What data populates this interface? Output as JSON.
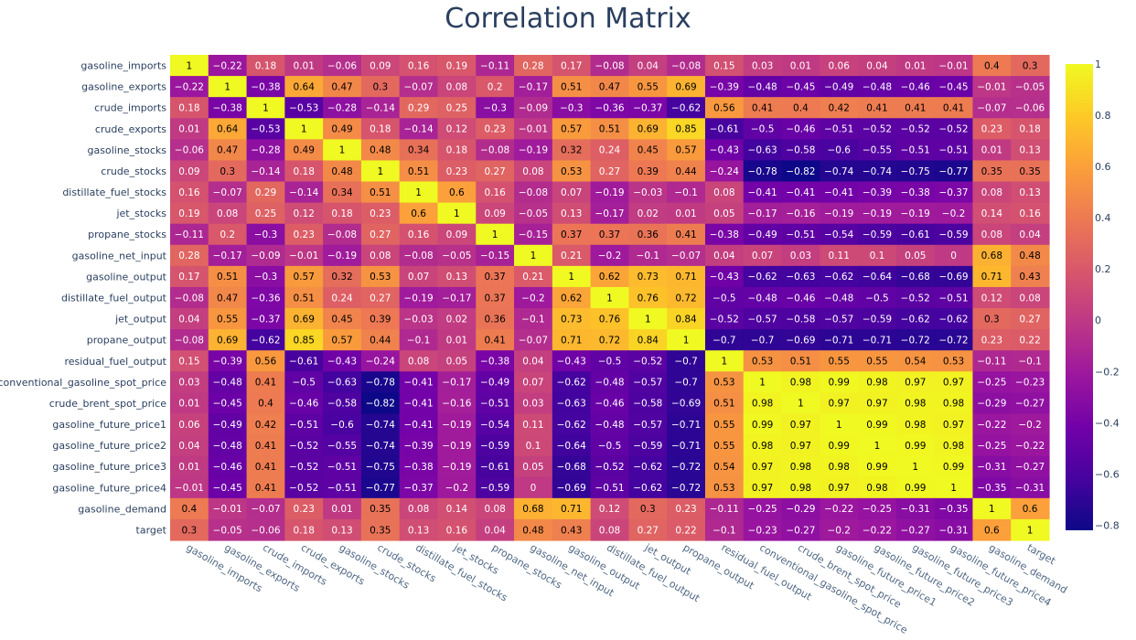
{
  "chart_data": {
    "type": "heatmap",
    "title": "Correlation Matrix",
    "xlabel": "",
    "ylabel": "",
    "categories": [
      "gasoline_imports",
      "gasoline_exports",
      "crude_imports",
      "crude_exports",
      "gasoline_stocks",
      "crude_stocks",
      "distillate_fuel_stocks",
      "jet_stocks",
      "propane_stocks",
      "gasoline_net_input",
      "gasoline_output",
      "distillate_fuel_output",
      "jet_output",
      "propane_output",
      "residual_fuel_output",
      "conventional_gasoline_spot_price",
      "crude_brent_spot_price",
      "gasoline_future_price1",
      "gasoline_future_price2",
      "gasoline_future_price3",
      "gasoline_future_price4",
      "gasoline_demand",
      "target"
    ],
    "matrix": [
      [
        1,
        -0.22,
        0.18,
        0.01,
        -0.06,
        0.09,
        0.16,
        0.19,
        -0.11,
        0.28,
        0.17,
        -0.08,
        0.04,
        -0.08,
        0.15,
        0.03,
        0.01,
        0.06,
        0.04,
        0.01,
        -0.01,
        0.4,
        0.3
      ],
      [
        -0.22,
        1,
        -0.38,
        0.64,
        0.47,
        0.3,
        -0.07,
        0.08,
        0.2,
        -0.17,
        0.51,
        0.47,
        0.55,
        0.69,
        -0.39,
        -0.48,
        -0.45,
        -0.49,
        -0.48,
        -0.46,
        -0.45,
        -0.01,
        -0.05
      ],
      [
        0.18,
        -0.38,
        1,
        -0.53,
        -0.28,
        -0.14,
        0.29,
        0.25,
        -0.3,
        -0.09,
        -0.3,
        -0.36,
        -0.37,
        -0.62,
        0.56,
        0.41,
        0.4,
        0.42,
        0.41,
        0.41,
        0.41,
        -0.07,
        -0.06
      ],
      [
        0.01,
        0.64,
        -0.53,
        1,
        0.49,
        0.18,
        -0.14,
        0.12,
        0.23,
        -0.01,
        0.57,
        0.51,
        0.69,
        0.85,
        -0.61,
        -0.5,
        -0.46,
        -0.51,
        -0.52,
        -0.52,
        -0.52,
        0.23,
        0.18
      ],
      [
        -0.06,
        0.47,
        -0.28,
        0.49,
        1,
        0.48,
        0.34,
        0.18,
        -0.08,
        -0.19,
        0.32,
        0.24,
        0.45,
        0.57,
        -0.43,
        -0.63,
        -0.58,
        -0.6,
        -0.55,
        -0.51,
        -0.51,
        0.01,
        0.13
      ],
      [
        0.09,
        0.3,
        -0.14,
        0.18,
        0.48,
        1,
        0.51,
        0.23,
        0.27,
        0.08,
        0.53,
        0.27,
        0.39,
        0.44,
        -0.24,
        -0.78,
        -0.82,
        -0.74,
        -0.74,
        -0.75,
        -0.77,
        0.35,
        0.35
      ],
      [
        0.16,
        -0.07,
        0.29,
        -0.14,
        0.34,
        0.51,
        1,
        0.6,
        0.16,
        -0.08,
        0.07,
        -0.19,
        -0.03,
        -0.1,
        0.08,
        -0.41,
        -0.41,
        -0.41,
        -0.39,
        -0.38,
        -0.37,
        0.08,
        0.13
      ],
      [
        0.19,
        0.08,
        0.25,
        0.12,
        0.18,
        0.23,
        0.6,
        1,
        0.09,
        -0.05,
        0.13,
        -0.17,
        0.02,
        0.01,
        0.05,
        -0.17,
        -0.16,
        -0.19,
        -0.19,
        -0.19,
        -0.2,
        0.14,
        0.16
      ],
      [
        -0.11,
        0.2,
        -0.3,
        0.23,
        -0.08,
        0.27,
        0.16,
        0.09,
        1,
        -0.15,
        0.37,
        0.37,
        0.36,
        0.41,
        -0.38,
        -0.49,
        -0.51,
        -0.54,
        -0.59,
        -0.61,
        -0.59,
        0.08,
        0.04
      ],
      [
        0.28,
        -0.17,
        -0.09,
        -0.01,
        -0.19,
        0.08,
        -0.08,
        -0.05,
        -0.15,
        1,
        0.21,
        -0.2,
        -0.1,
        -0.07,
        0.04,
        0.07,
        0.03,
        0.11,
        0.1,
        0.05,
        0,
        0.68,
        0.48
      ],
      [
        0.17,
        0.51,
        -0.3,
        0.57,
        0.32,
        0.53,
        0.07,
        0.13,
        0.37,
        0.21,
        1,
        0.62,
        0.73,
        0.71,
        -0.43,
        -0.62,
        -0.63,
        -0.62,
        -0.64,
        -0.68,
        -0.69,
        0.71,
        0.43
      ],
      [
        -0.08,
        0.47,
        -0.36,
        0.51,
        0.24,
        0.27,
        -0.19,
        -0.17,
        0.37,
        -0.2,
        0.62,
        1,
        0.76,
        0.72,
        -0.5,
        -0.48,
        -0.46,
        -0.48,
        -0.5,
        -0.52,
        -0.51,
        0.12,
        0.08
      ],
      [
        0.04,
        0.55,
        -0.37,
        0.69,
        0.45,
        0.39,
        -0.03,
        0.02,
        0.36,
        -0.1,
        0.73,
        0.76,
        1,
        0.84,
        -0.52,
        -0.57,
        -0.58,
        -0.57,
        -0.59,
        -0.62,
        -0.62,
        0.3,
        0.27
      ],
      [
        -0.08,
        0.69,
        -0.62,
        0.85,
        0.57,
        0.44,
        -0.1,
        0.01,
        0.41,
        -0.07,
        0.71,
        0.72,
        0.84,
        1,
        -0.7,
        -0.7,
        -0.69,
        -0.71,
        -0.71,
        -0.72,
        -0.72,
        0.23,
        0.22
      ],
      [
        0.15,
        -0.39,
        0.56,
        -0.61,
        -0.43,
        -0.24,
        0.08,
        0.05,
        -0.38,
        0.04,
        -0.43,
        -0.5,
        -0.52,
        -0.7,
        1,
        0.53,
        0.51,
        0.55,
        0.55,
        0.54,
        0.53,
        -0.11,
        -0.1
      ],
      [
        0.03,
        -0.48,
        0.41,
        -0.5,
        -0.63,
        -0.78,
        -0.41,
        -0.17,
        -0.49,
        0.07,
        -0.62,
        -0.48,
        -0.57,
        -0.7,
        0.53,
        1,
        0.98,
        0.99,
        0.98,
        0.97,
        0.97,
        -0.25,
        -0.23
      ],
      [
        0.01,
        -0.45,
        0.4,
        -0.46,
        -0.58,
        -0.82,
        -0.41,
        -0.16,
        -0.51,
        0.03,
        -0.63,
        -0.46,
        -0.58,
        -0.69,
        0.51,
        0.98,
        1,
        0.97,
        0.97,
        0.98,
        0.98,
        -0.29,
        -0.27
      ],
      [
        0.06,
        -0.49,
        0.42,
        -0.51,
        -0.6,
        -0.74,
        -0.41,
        -0.19,
        -0.54,
        0.11,
        -0.62,
        -0.48,
        -0.57,
        -0.71,
        0.55,
        0.99,
        0.97,
        1,
        0.99,
        0.98,
        0.97,
        -0.22,
        -0.2
      ],
      [
        0.04,
        -0.48,
        0.41,
        -0.52,
        -0.55,
        -0.74,
        -0.39,
        -0.19,
        -0.59,
        0.1,
        -0.64,
        -0.5,
        -0.59,
        -0.71,
        0.55,
        0.98,
        0.97,
        0.99,
        1,
        0.99,
        0.98,
        -0.25,
        -0.22
      ],
      [
        0.01,
        -0.46,
        0.41,
        -0.52,
        -0.51,
        -0.75,
        -0.38,
        -0.19,
        -0.61,
        0.05,
        -0.68,
        -0.52,
        -0.62,
        -0.72,
        0.54,
        0.97,
        0.98,
        0.98,
        0.99,
        1,
        0.99,
        -0.31,
        -0.27
      ],
      [
        -0.01,
        -0.45,
        0.41,
        -0.52,
        -0.51,
        -0.77,
        -0.37,
        -0.2,
        -0.59,
        0,
        -0.69,
        -0.51,
        -0.62,
        -0.72,
        0.53,
        0.97,
        0.98,
        0.97,
        0.98,
        0.99,
        1,
        -0.35,
        -0.31
      ],
      [
        0.4,
        -0.01,
        -0.07,
        0.23,
        0.01,
        0.35,
        0.08,
        0.14,
        0.08,
        0.68,
        0.71,
        0.12,
        0.3,
        0.23,
        -0.11,
        -0.25,
        -0.29,
        -0.22,
        -0.25,
        -0.31,
        -0.35,
        1,
        0.6
      ],
      [
        0.3,
        -0.05,
        -0.06,
        0.18,
        0.13,
        0.35,
        0.13,
        0.16,
        0.04,
        0.48,
        0.43,
        0.08,
        0.27,
        0.22,
        -0.1,
        -0.23,
        -0.27,
        -0.2,
        -0.22,
        -0.27,
        -0.31,
        0.6,
        1
      ]
    ],
    "zrange": [
      -0.82,
      1
    ],
    "colorscale": "plasma",
    "colorbar_ticks": [
      {
        "value": 1,
        "label": "1"
      },
      {
        "value": 0.8,
        "label": "0.8"
      },
      {
        "value": 0.6,
        "label": "0.6"
      },
      {
        "value": 0.4,
        "label": "0.4"
      },
      {
        "value": 0.2,
        "label": "0.2"
      },
      {
        "value": 0,
        "label": "0"
      },
      {
        "value": -0.2,
        "label": "−0.2"
      },
      {
        "value": -0.4,
        "label": "−0.4"
      },
      {
        "value": -0.6,
        "label": "−0.6"
      },
      {
        "value": -0.8,
        "label": "−0.8"
      }
    ],
    "legend": "colorbar-right"
  }
}
